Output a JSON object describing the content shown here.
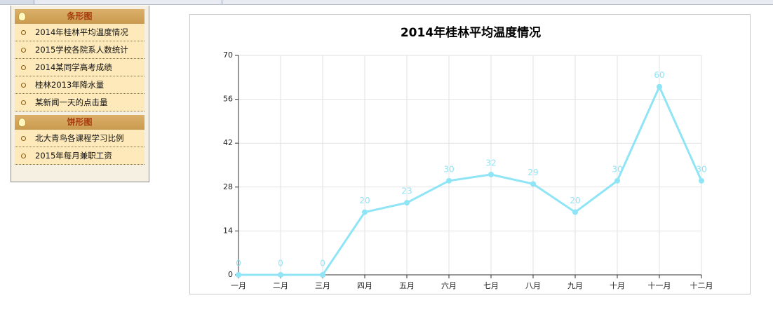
{
  "sidebar": {
    "sections": [
      {
        "title": "条形图",
        "items": [
          "2014年桂林平均温度情况",
          "2015学校各院系人数统计",
          "2014某同学高考成绩",
          "桂林2013年降水量",
          "某新闻一天的点击量"
        ]
      },
      {
        "title": "饼形图",
        "items": [
          "北大青鸟各课程学习比例",
          "2015年每月兼职工资"
        ]
      }
    ]
  },
  "chart_data": {
    "type": "line",
    "title": "2014年桂林平均温度情况",
    "categories": [
      "一月",
      "二月",
      "三月",
      "四月",
      "五月",
      "六月",
      "七月",
      "八月",
      "九月",
      "十月",
      "十一月",
      "十二月"
    ],
    "series": [
      {
        "name": "平均温度",
        "color": "#8fe5f6",
        "values": [
          0,
          0,
          0,
          20,
          23,
          30,
          32,
          29,
          20,
          30,
          60,
          30
        ]
      }
    ],
    "ylim": [
      0,
      70
    ],
    "yticks": [
      0,
      14,
      28,
      42,
      56,
      70
    ],
    "grid": true
  }
}
